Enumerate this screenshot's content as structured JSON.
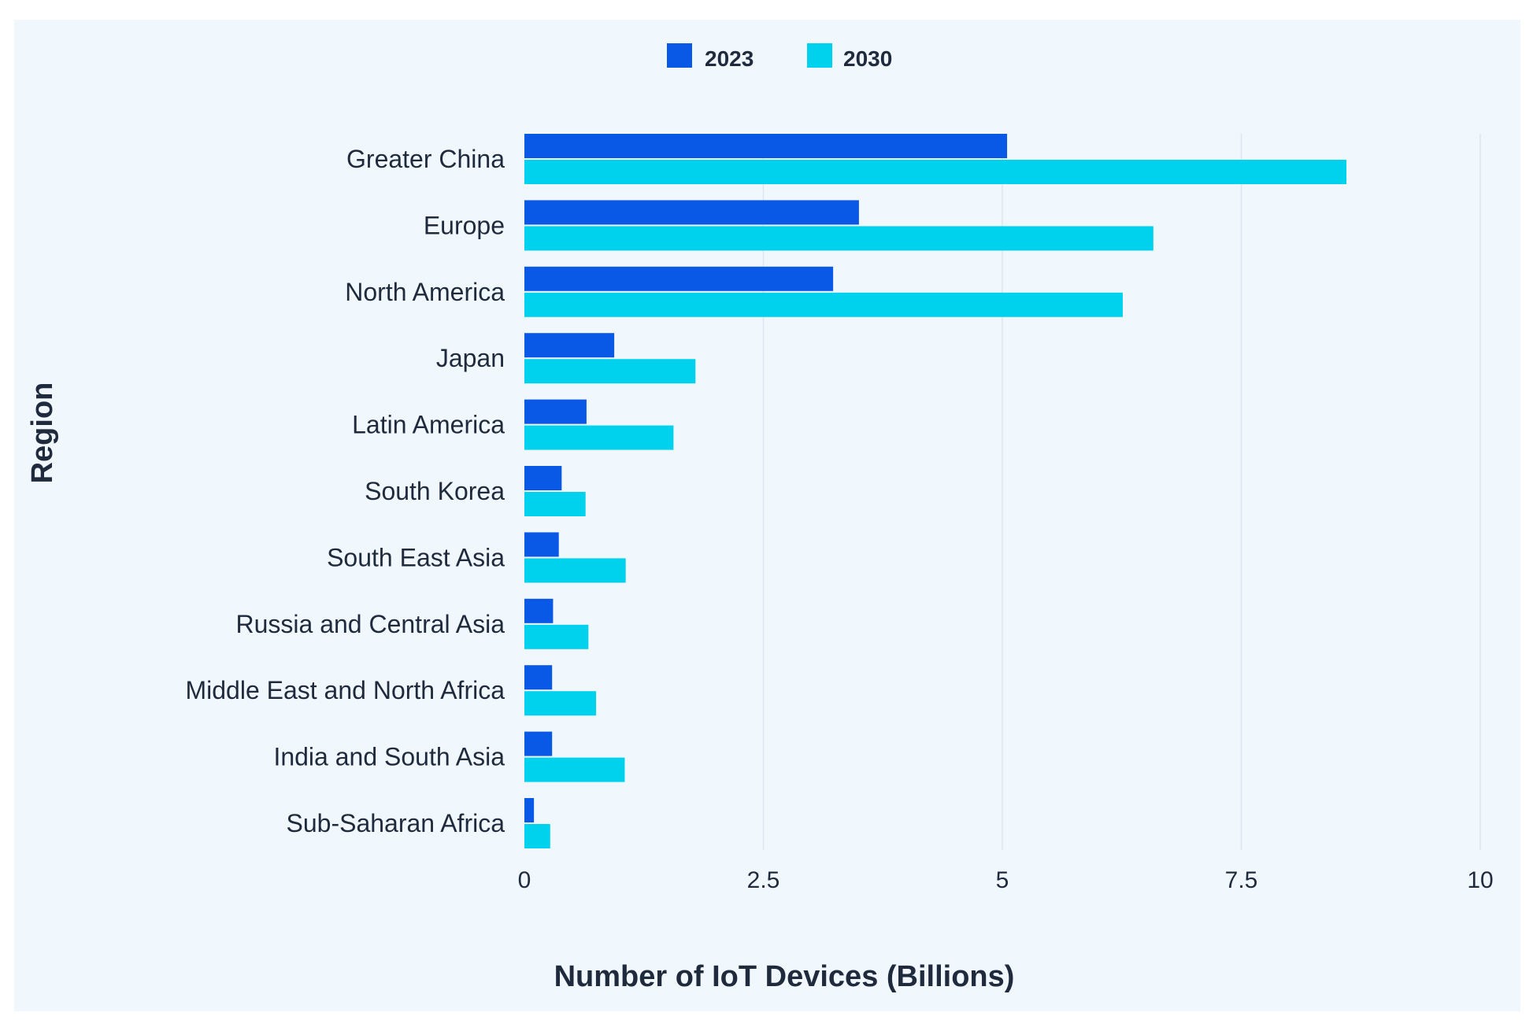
{
  "chart_data": {
    "type": "bar",
    "orientation": "horizontal",
    "categories": [
      "Greater China",
      "Europe",
      "North America",
      "Japan",
      "Latin America",
      "South Korea",
      "South East Asia",
      "Russia and Central Asia",
      "Middle East and North Africa",
      "India and South Asia",
      "Sub-Saharan Africa"
    ],
    "series": [
      {
        "name": "2023",
        "color": "#0a58e6",
        "values": [
          5.05,
          3.5,
          3.23,
          0.94,
          0.65,
          0.39,
          0.36,
          0.3,
          0.29,
          0.29,
          0.1
        ]
      },
      {
        "name": "2030",
        "color": "#00d2ee",
        "values": [
          8.6,
          6.58,
          6.26,
          1.79,
          1.56,
          0.64,
          1.06,
          0.67,
          0.75,
          1.05,
          0.27
        ]
      }
    ],
    "title": "",
    "xlabel": "Number of IoT Devices (Billions)",
    "ylabel": "Region",
    "xlim": [
      0,
      10
    ],
    "xticks": [
      0,
      2.5,
      5,
      7.5,
      10
    ],
    "xtick_labels": [
      "0",
      "2.5",
      "5",
      "7.5",
      "10"
    ],
    "grid": "vertical",
    "legend_position": "top-center"
  }
}
